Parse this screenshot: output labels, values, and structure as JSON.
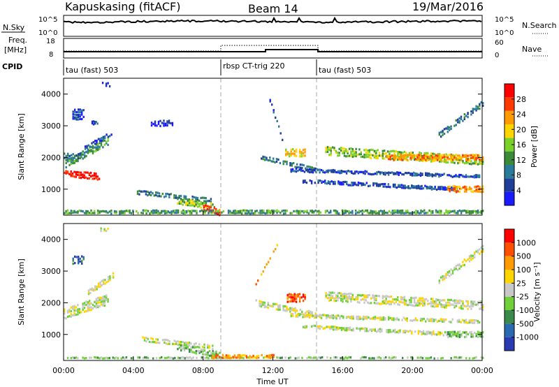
{
  "header": {
    "station": "Kapuskasing (fitACF)",
    "beam": "Beam 14",
    "date": "19/Mar/2016"
  },
  "top_panels": {
    "nsky_label": "N.Sky",
    "nsky_ticks": [
      "10^5",
      "10^0"
    ],
    "nsearch_label": "N.Search",
    "freq_label_1": "Freq.",
    "freq_label_2": "[MHz]",
    "freq_ticks": [
      "18",
      "8"
    ],
    "nave_ticks": [
      "60",
      "0"
    ],
    "nave_label": "Nave",
    "cpid_label": "CPID",
    "cpid_segments": [
      "tau (fast) 503",
      "rbsp CT-trig 220",
      "tau (fast) 503"
    ]
  },
  "colors": {
    "power": [
      "#1a1aff",
      "#1f3f9a",
      "#2a7a9a",
      "#3a8a3a",
      "#7ad12a",
      "#ffd500",
      "#ff9a00",
      "#ff3a00",
      "#ff0000"
    ],
    "velocity": [
      "#2a3ab0",
      "#2a6ab0",
      "#3a8a4a",
      "#6fd03a",
      "#c8c8c8",
      "#ffd500",
      "#ff9a00",
      "#ff5000",
      "#ff0000"
    ],
    "background": "#ffffff"
  },
  "chart_data": [
    {
      "type": "heatmap",
      "name": "power",
      "ylabel": "Slant Range [km]",
      "yticks": [
        1000,
        2000,
        3000,
        4000
      ],
      "colorbar_label": "Power [dB]",
      "colorbar_ticks": [
        "4",
        "8",
        "12",
        "16",
        "20",
        "24",
        "28"
      ],
      "ylim": [
        180,
        4500
      ],
      "xlim": [
        0,
        24
      ],
      "features": [
        {
          "kind": "band",
          "t0": 0.0,
          "t1": 2.0,
          "r0": 1500,
          "r1": 1400,
          "w": 240,
          "level": 8
        },
        {
          "kind": "band",
          "t0": 0.1,
          "t1": 2.5,
          "r0": 1800,
          "r1": 2500,
          "w": 260,
          "level": 3
        },
        {
          "kind": "band",
          "t0": 0.0,
          "t1": 0.9,
          "r0": 2050,
          "r1": 2050,
          "w": 200,
          "level": 2
        },
        {
          "kind": "band",
          "t0": 1.2,
          "t1": 2.7,
          "r0": 2300,
          "r1": 2750,
          "w": 150,
          "level": 1
        },
        {
          "kind": "patch",
          "t0": 0.5,
          "t1": 1.1,
          "r0": 3200,
          "r1": 3500,
          "level": 1
        },
        {
          "kind": "patch",
          "t0": 2.2,
          "t1": 2.6,
          "r0": 4250,
          "r1": 4350,
          "level": 0
        },
        {
          "kind": "patch",
          "t0": 1.6,
          "t1": 1.9,
          "r0": 3050,
          "r1": 3150,
          "level": 1
        },
        {
          "kind": "band",
          "t0": 4.2,
          "t1": 8.4,
          "r0": 900,
          "r1": 650,
          "w": 160,
          "level": 2
        },
        {
          "kind": "band",
          "t0": 6.5,
          "t1": 8.6,
          "r0": 620,
          "r1": 450,
          "w": 220,
          "level": 4
        },
        {
          "kind": "band",
          "t0": 8.0,
          "t1": 8.9,
          "r0": 420,
          "r1": 260,
          "w": 200,
          "level": 7
        },
        {
          "kind": "band",
          "t0": 0.0,
          "t1": 24.0,
          "r0": 280,
          "r1": 280,
          "w": 120,
          "level": 3
        },
        {
          "kind": "band",
          "t0": 11.3,
          "t1": 14.5,
          "r0": 2000,
          "r1": 1600,
          "w": 170,
          "level": 2
        },
        {
          "kind": "band",
          "t0": 12.7,
          "t1": 13.8,
          "r0": 2150,
          "r1": 2150,
          "w": 260,
          "level": 5
        },
        {
          "kind": "band",
          "t0": 13.0,
          "t1": 23.8,
          "r0": 1600,
          "r1": 1400,
          "w": 110,
          "level": 1
        },
        {
          "kind": "band",
          "t0": 13.7,
          "t1": 22.5,
          "r0": 1250,
          "r1": 1000,
          "w": 120,
          "level": 1
        },
        {
          "kind": "band",
          "t0": 15.0,
          "t1": 24.0,
          "r0": 2200,
          "r1": 1900,
          "w": 300,
          "level": 4
        },
        {
          "kind": "band",
          "t0": 18.5,
          "t1": 24.0,
          "r0": 2000,
          "r1": 2000,
          "w": 200,
          "level": 6
        },
        {
          "kind": "band",
          "t0": 22.0,
          "t1": 24.0,
          "r0": 1000,
          "r1": 1000,
          "w": 220,
          "level": 6
        },
        {
          "kind": "band",
          "t0": 21.5,
          "t1": 24.0,
          "r0": 2700,
          "r1": 3700,
          "w": 200,
          "level": 2
        },
        {
          "kind": "band",
          "t0": 11.8,
          "t1": 12.5,
          "r0": 3800,
          "r1": 2600,
          "w": 120,
          "level": 1
        },
        {
          "kind": "patch",
          "t0": 5.0,
          "t1": 6.2,
          "r0": 3000,
          "r1": 3150,
          "level": 0
        }
      ]
    },
    {
      "type": "heatmap",
      "name": "velocity",
      "ylabel": "Slant Range [km]",
      "yticks": [
        1000,
        2000,
        3000,
        4000
      ],
      "colorbar_label": "Velocity [m s⁻¹]",
      "colorbar_ticks": [
        "-1000",
        "-500",
        "-100",
        "-25",
        "25",
        "100",
        "500",
        "1000"
      ],
      "ylim": [
        180,
        4500
      ],
      "xlim": [
        0,
        24
      ],
      "features": [
        {
          "kind": "band",
          "t0": 0.0,
          "t1": 2.5,
          "r0": 1650,
          "r1": 2100,
          "w": 350,
          "level": 4
        },
        {
          "kind": "band",
          "t0": 1.3,
          "t1": 2.8,
          "r0": 2300,
          "r1": 2850,
          "w": 180,
          "level": 4
        },
        {
          "kind": "patch",
          "t0": 2.1,
          "t1": 2.5,
          "r0": 4250,
          "r1": 4350,
          "level": 4
        },
        {
          "kind": "patch",
          "t0": 0.5,
          "t1": 1.1,
          "r0": 3250,
          "r1": 3450,
          "level": 1
        },
        {
          "kind": "band",
          "t0": 4.5,
          "t1": 8.5,
          "r0": 850,
          "r1": 600,
          "w": 170,
          "level": 4
        },
        {
          "kind": "band",
          "t0": 6.5,
          "t1": 8.9,
          "r0": 600,
          "r1": 350,
          "w": 200,
          "level": 3
        },
        {
          "kind": "band",
          "t0": 0.0,
          "t1": 24.0,
          "r0": 260,
          "r1": 260,
          "w": 100,
          "level": 3
        },
        {
          "kind": "band",
          "t0": 8.5,
          "t1": 12.0,
          "r0": 300,
          "r1": 300,
          "w": 120,
          "level": 6
        },
        {
          "kind": "band",
          "t0": 11.0,
          "t1": 14.5,
          "r0": 2000,
          "r1": 1600,
          "w": 200,
          "level": 4
        },
        {
          "kind": "band",
          "t0": 12.8,
          "t1": 13.8,
          "r0": 2150,
          "r1": 2150,
          "w": 280,
          "level": 7
        },
        {
          "kind": "band",
          "t0": 13.0,
          "t1": 23.8,
          "r0": 1600,
          "r1": 1400,
          "w": 110,
          "level": 4
        },
        {
          "kind": "band",
          "t0": 13.7,
          "t1": 22.5,
          "r0": 1250,
          "r1": 1000,
          "w": 120,
          "level": 4
        },
        {
          "kind": "band",
          "t0": 15.0,
          "t1": 24.0,
          "r0": 2200,
          "r1": 1900,
          "w": 300,
          "level": 4
        },
        {
          "kind": "band",
          "t0": 22.0,
          "t1": 24.0,
          "r0": 1000,
          "r1": 1000,
          "w": 200,
          "level": 3
        },
        {
          "kind": "band",
          "t0": 21.5,
          "t1": 24.0,
          "r0": 2700,
          "r1": 3700,
          "w": 200,
          "level": 4
        },
        {
          "kind": "band",
          "t0": 11.0,
          "t1": 12.2,
          "r0": 2600,
          "r1": 3800,
          "w": 100,
          "level": 6
        }
      ]
    }
  ],
  "x_axis": {
    "label": "Time UT",
    "ticks": [
      "00:00",
      "04:00",
      "08:00",
      "12:00",
      "16:00",
      "20:00",
      "00:00"
    ],
    "cpid_change_times": [
      9.0,
      14.5
    ]
  }
}
